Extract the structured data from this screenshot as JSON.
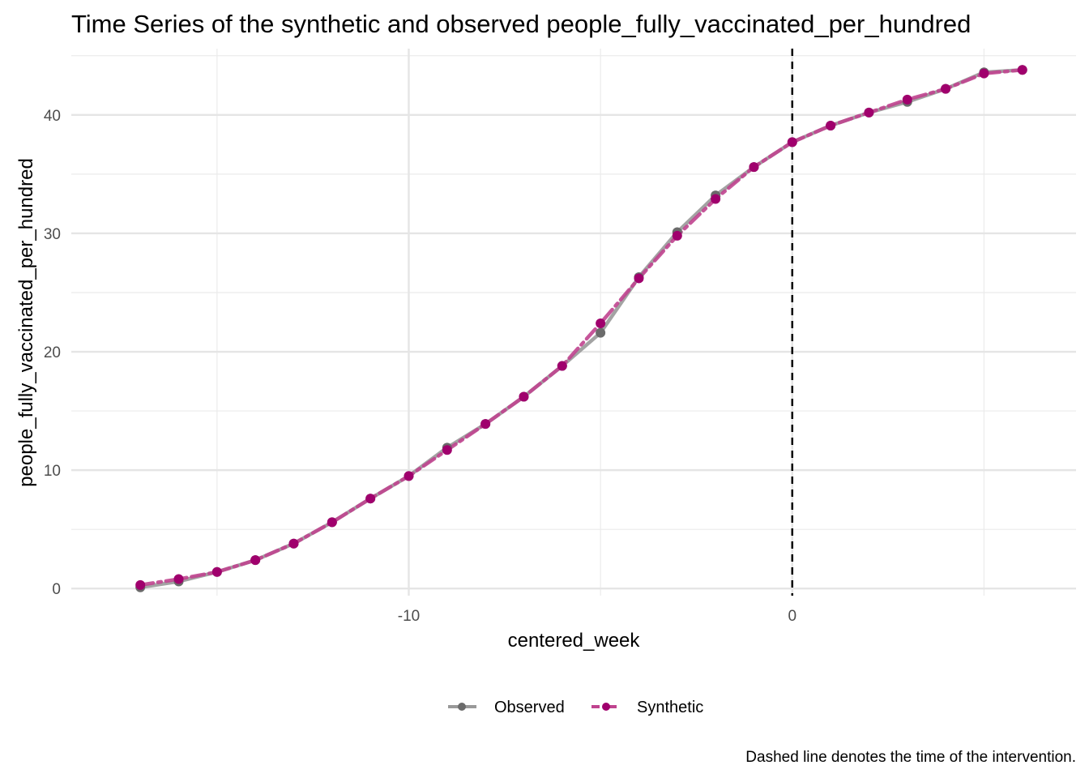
{
  "chart_data": {
    "type": "line",
    "title": "Time Series of the synthetic and observed people_fully_vaccinated_per_hundred",
    "xlabel": "centered_week",
    "ylabel": "people_fully_vaccinated_per_hundred",
    "caption": "Dashed line denotes the time of the intervention.",
    "xlim": [
      -18.8,
      7.4
    ],
    "ylim": [
      -0.6,
      45.6
    ],
    "x_ticks": [
      -10,
      0
    ],
    "x_tick_labels": [
      "-10",
      "0"
    ],
    "x_minor_ticks": [
      -15,
      -5,
      5
    ],
    "y_ticks": [
      0,
      10,
      20,
      30,
      40
    ],
    "y_tick_labels": [
      "0",
      "10",
      "20",
      "30",
      "40"
    ],
    "y_minor_ticks": [
      5,
      15,
      25,
      35,
      45
    ],
    "intervention_x": 0,
    "grid": true,
    "legend_position": "bottom",
    "x": [
      -17,
      -16,
      -15,
      -14,
      -13,
      -12,
      -11,
      -10,
      -9,
      -8,
      -7,
      -6,
      -5,
      -4,
      -3,
      -2,
      -1,
      0,
      1,
      2,
      3,
      4,
      5,
      6
    ],
    "series": [
      {
        "name": "Observed",
        "color": "#6b6b6b",
        "line_color": "#999999",
        "line_style": "solid",
        "values": [
          0.1,
          0.6,
          1.4,
          2.4,
          3.8,
          5.6,
          7.6,
          9.5,
          11.9,
          13.9,
          16.2,
          18.8,
          21.6,
          26.3,
          30.1,
          33.2,
          35.6,
          37.7,
          39.1,
          40.2,
          41.1,
          42.2,
          43.6,
          43.8
        ]
      },
      {
        "name": "Synthetic",
        "color": "#a0006d",
        "line_color": "#c0448f",
        "line_style": "dashed",
        "values": [
          0.3,
          0.8,
          1.4,
          2.4,
          3.8,
          5.6,
          7.6,
          9.5,
          11.7,
          13.9,
          16.2,
          18.8,
          22.4,
          26.2,
          29.8,
          32.9,
          35.6,
          37.7,
          39.1,
          40.2,
          41.3,
          42.2,
          43.5,
          43.8
        ]
      }
    ]
  }
}
